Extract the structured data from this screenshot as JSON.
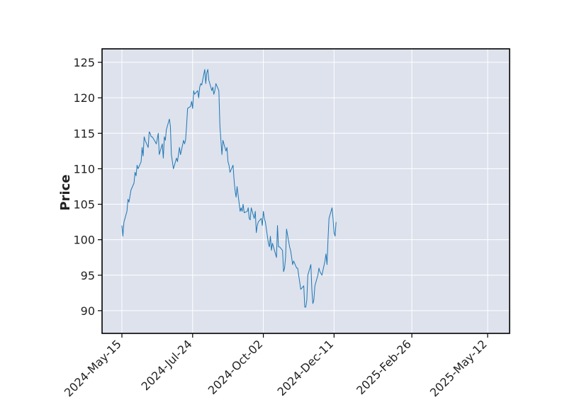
{
  "chart_data": {
    "type": "line",
    "title": "",
    "xlabel": "",
    "ylabel": "Price",
    "x_start": "2024-05-15",
    "x_end": "2025-05-12",
    "x_ticks": [
      "2024-May-15",
      "2024-Jul-24",
      "2024-Oct-02",
      "2024-Dec-11",
      "2025-Feb-26",
      "2025-May-12"
    ],
    "y_ticks": [
      90,
      95,
      100,
      105,
      110,
      115,
      120,
      125
    ],
    "ylim": [
      86.8,
      126.9
    ],
    "grid": true,
    "legend": "none",
    "series": [
      {
        "color": "#1f77b4",
        "points": [
          [
            "2024-05-15",
            102.0
          ],
          [
            "2024-05-16",
            100.5
          ],
          [
            "2024-05-17",
            102.5
          ],
          [
            "2024-05-20",
            104.0
          ],
          [
            "2024-05-21",
            105.7
          ],
          [
            "2024-05-22",
            105.3
          ],
          [
            "2024-05-24",
            107.0
          ],
          [
            "2024-05-27",
            108.0
          ],
          [
            "2024-05-28",
            109.5
          ],
          [
            "2024-05-29",
            109.0
          ],
          [
            "2024-05-30",
            110.5
          ],
          [
            "2024-05-31",
            110.0
          ],
          [
            "2024-06-03",
            111.0
          ],
          [
            "2024-06-04",
            113.0
          ],
          [
            "2024-06-05",
            111.8
          ],
          [
            "2024-06-06",
            114.5
          ],
          [
            "2024-06-07",
            114.0
          ],
          [
            "2024-06-10",
            113.0
          ],
          [
            "2024-06-11",
            115.2
          ],
          [
            "2024-06-12",
            115.0
          ],
          [
            "2024-06-13",
            114.5
          ],
          [
            "2024-06-14",
            114.5
          ],
          [
            "2024-06-17",
            113.8
          ],
          [
            "2024-06-18",
            113.5
          ],
          [
            "2024-06-19",
            114.2
          ],
          [
            "2024-06-20",
            115.0
          ],
          [
            "2024-06-21",
            112.0
          ],
          [
            "2024-06-24",
            113.5
          ],
          [
            "2024-06-25",
            111.5
          ],
          [
            "2024-06-26",
            114.5
          ],
          [
            "2024-06-27",
            114.0
          ],
          [
            "2024-06-28",
            115.5
          ],
          [
            "2024-07-01",
            117.0
          ],
          [
            "2024-07-02",
            116.0
          ],
          [
            "2024-07-03",
            112.0
          ],
          [
            "2024-07-05",
            110.0
          ],
          [
            "2024-07-08",
            111.5
          ],
          [
            "2024-07-09",
            111.0
          ],
          [
            "2024-07-10",
            112.0
          ],
          [
            "2024-07-11",
            113.0
          ],
          [
            "2024-07-12",
            112.0
          ],
          [
            "2024-07-15",
            114.0
          ],
          [
            "2024-07-16",
            113.5
          ],
          [
            "2024-07-17",
            114.0
          ],
          [
            "2024-07-18",
            116.0
          ],
          [
            "2024-07-19",
            118.5
          ],
          [
            "2024-07-22",
            118.8
          ],
          [
            "2024-07-23",
            119.5
          ],
          [
            "2024-07-24",
            118.5
          ],
          [
            "2024-07-25",
            121.0
          ],
          [
            "2024-07-26",
            120.5
          ],
          [
            "2024-07-29",
            121.0
          ],
          [
            "2024-07-30",
            120.0
          ],
          [
            "2024-07-31",
            121.5
          ],
          [
            "2024-08-01",
            122.0
          ],
          [
            "2024-08-02",
            121.8
          ],
          [
            "2024-08-05",
            124.0
          ],
          [
            "2024-08-06",
            122.0
          ],
          [
            "2024-08-07",
            123.5
          ],
          [
            "2024-08-08",
            124.0
          ],
          [
            "2024-08-09",
            122.5
          ],
          [
            "2024-08-12",
            121.0
          ],
          [
            "2024-08-13",
            121.5
          ],
          [
            "2024-08-14",
            120.5
          ],
          [
            "2024-08-15",
            121.0
          ],
          [
            "2024-08-16",
            122.0
          ],
          [
            "2024-08-19",
            121.0
          ],
          [
            "2024-08-20",
            116.0
          ],
          [
            "2024-08-21",
            114.0
          ],
          [
            "2024-08-22",
            112.0
          ],
          [
            "2024-08-23",
            114.0
          ],
          [
            "2024-08-26",
            112.5
          ],
          [
            "2024-08-27",
            113.0
          ],
          [
            "2024-08-28",
            111.0
          ],
          [
            "2024-08-29",
            110.5
          ],
          [
            "2024-08-30",
            109.5
          ],
          [
            "2024-09-02",
            110.5
          ],
          [
            "2024-09-03",
            108.5
          ],
          [
            "2024-09-04",
            107.0
          ],
          [
            "2024-09-05",
            106.0
          ],
          [
            "2024-09-06",
            107.5
          ],
          [
            "2024-09-09",
            104.0
          ],
          [
            "2024-09-10",
            104.5
          ],
          [
            "2024-09-11",
            104.0
          ],
          [
            "2024-09-12",
            105.0
          ],
          [
            "2024-09-13",
            103.8
          ],
          [
            "2024-09-16",
            104.0
          ],
          [
            "2024-09-17",
            104.5
          ],
          [
            "2024-09-18",
            103.0
          ],
          [
            "2024-09-19",
            102.8
          ],
          [
            "2024-09-20",
            104.5
          ],
          [
            "2024-09-23",
            103.0
          ],
          [
            "2024-09-24",
            104.0
          ],
          [
            "2024-09-25",
            101.0
          ],
          [
            "2024-09-26",
            102.0
          ],
          [
            "2024-09-27",
            102.5
          ],
          [
            "2024-09-30",
            103.0
          ],
          [
            "2024-10-01",
            102.0
          ],
          [
            "2024-10-02",
            104.0
          ],
          [
            "2024-10-03",
            103.0
          ],
          [
            "2024-10-04",
            102.5
          ],
          [
            "2024-10-07",
            99.5
          ],
          [
            "2024-10-08",
            99.0
          ],
          [
            "2024-10-09",
            100.5
          ],
          [
            "2024-10-10",
            98.5
          ],
          [
            "2024-10-11",
            99.5
          ],
          [
            "2024-10-14",
            98.0
          ],
          [
            "2024-10-15",
            97.5
          ],
          [
            "2024-10-16",
            102.0
          ],
          [
            "2024-10-17",
            99.0
          ],
          [
            "2024-10-18",
            99.0
          ],
          [
            "2024-10-21",
            98.5
          ],
          [
            "2024-10-22",
            95.5
          ],
          [
            "2024-10-23",
            96.0
          ],
          [
            "2024-10-24",
            97.5
          ],
          [
            "2024-10-25",
            101.5
          ],
          [
            "2024-10-28",
            99.0
          ],
          [
            "2024-10-29",
            98.5
          ],
          [
            "2024-10-30",
            97.5
          ],
          [
            "2024-10-31",
            96.5
          ],
          [
            "2024-11-01",
            97.0
          ],
          [
            "2024-11-04",
            96.0
          ],
          [
            "2024-11-05",
            96.0
          ],
          [
            "2024-11-06",
            95.0
          ],
          [
            "2024-11-07",
            94.0
          ],
          [
            "2024-11-08",
            93.0
          ],
          [
            "2024-11-11",
            93.5
          ],
          [
            "2024-11-12",
            90.5
          ],
          [
            "2024-11-13",
            90.5
          ],
          [
            "2024-11-14",
            91.5
          ],
          [
            "2024-11-15",
            95.0
          ],
          [
            "2024-11-18",
            96.5
          ],
          [
            "2024-11-19",
            93.0
          ],
          [
            "2024-11-20",
            91.0
          ],
          [
            "2024-11-21",
            91.5
          ],
          [
            "2024-11-22",
            93.5
          ],
          [
            "2024-11-25",
            95.0
          ],
          [
            "2024-11-26",
            96.0
          ],
          [
            "2024-11-27",
            95.5
          ],
          [
            "2024-11-29",
            95.0
          ],
          [
            "2024-12-02",
            97.0
          ],
          [
            "2024-12-03",
            98.0
          ],
          [
            "2024-12-04",
            96.5
          ],
          [
            "2024-12-05",
            100.0
          ],
          [
            "2024-12-06",
            103.0
          ],
          [
            "2024-12-09",
            104.5
          ],
          [
            "2024-12-10",
            103.0
          ],
          [
            "2024-12-11",
            101.0
          ],
          [
            "2024-12-12",
            100.5
          ],
          [
            "2024-12-13",
            102.5
          ]
        ]
      },
      {
        "color": "#ff7f0e",
        "points": []
      },
      {
        "color": "#2ca02c",
        "points": []
      }
    ]
  }
}
